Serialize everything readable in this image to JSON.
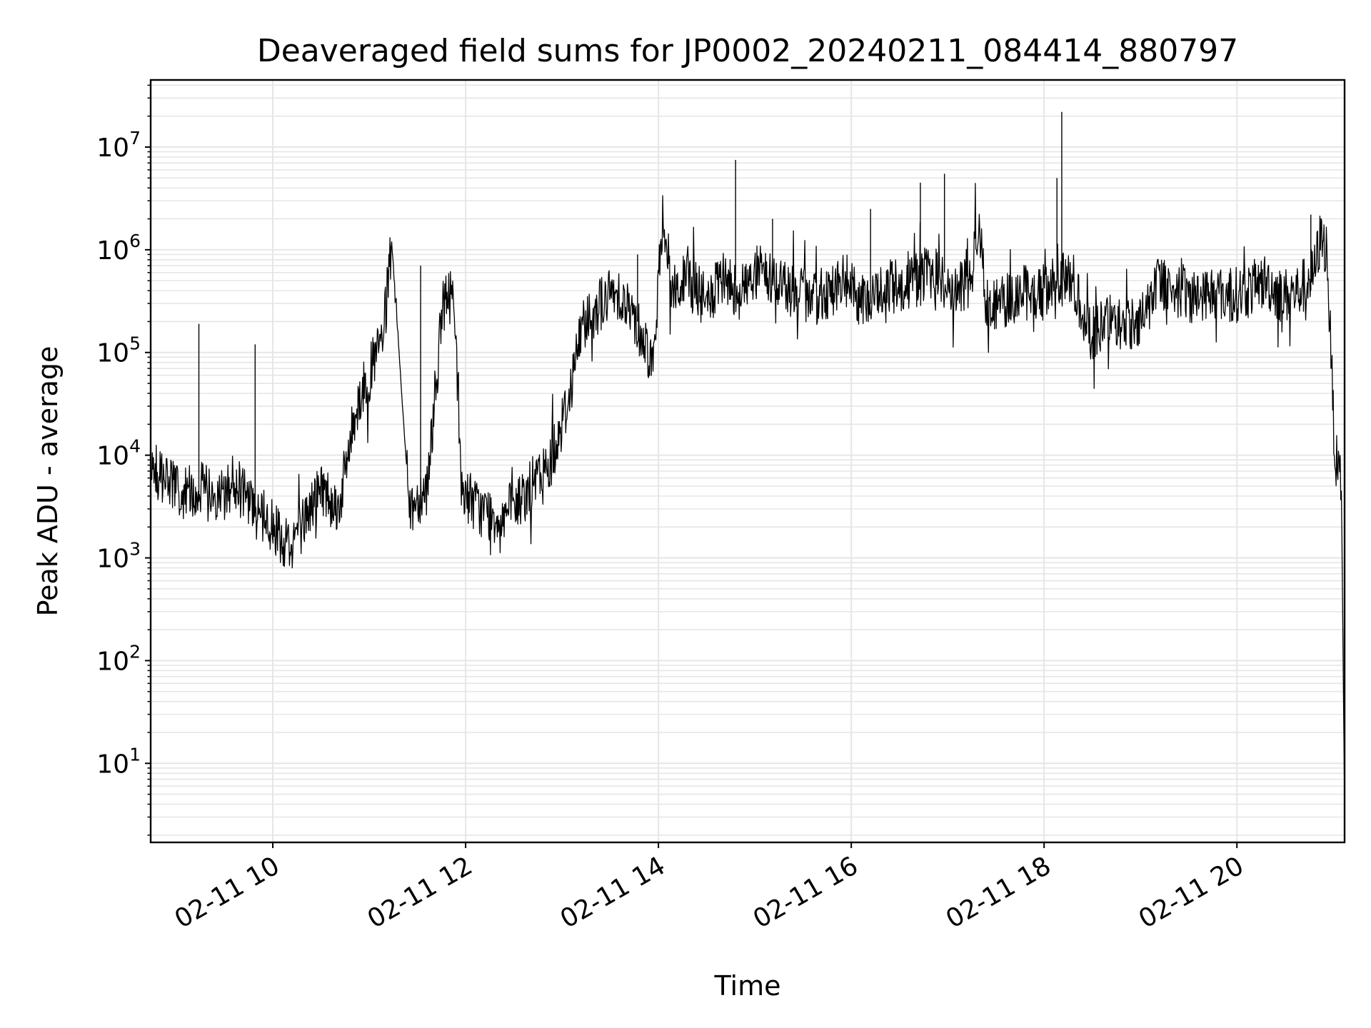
{
  "chart_data": {
    "type": "line",
    "title": "Deaveraged field sums for JP0002_20240211_084414_880797",
    "xlabel": "Time",
    "ylabel": "Peak ADU - average",
    "yscale": "log",
    "xlim": [
      "02-11 08:44",
      "02-11 21:07"
    ],
    "ylim": [
      1.7,
      45000000
    ],
    "grid": true,
    "line_color": "#000000",
    "grid_color": "#e6e6e6",
    "x_ticks": [
      {
        "t": "02-11 10:00",
        "label": "02-11 10"
      },
      {
        "t": "02-11 12:00",
        "label": "02-11 12"
      },
      {
        "t": "02-11 14:00",
        "label": "02-11 14"
      },
      {
        "t": "02-11 16:00",
        "label": "02-11 16"
      },
      {
        "t": "02-11 18:00",
        "label": "02-11 18"
      },
      {
        "t": "02-11 20:00",
        "label": "02-11 20"
      }
    ],
    "y_ticks": [
      {
        "value": 10,
        "base": "10",
        "exp": "1"
      },
      {
        "value": 100,
        "base": "10",
        "exp": "2"
      },
      {
        "value": 1000,
        "base": "10",
        "exp": "3"
      },
      {
        "value": 10000,
        "base": "10",
        "exp": "4"
      },
      {
        "value": 100000,
        "base": "10",
        "exp": "5"
      },
      {
        "value": 1000000,
        "base": "10",
        "exp": "6"
      },
      {
        "value": 10000000,
        "base": "10",
        "exp": "7"
      }
    ],
    "series": [
      {
        "x": [
          "02-11 08:44",
          "02-11 08:53",
          "02-11 09:04",
          "02-11 09:14",
          "02-11 09:25",
          "02-11 09:36",
          "02-11 09:47",
          "02-11 09:58",
          "02-11 10:09",
          "02-11 10:19",
          "02-11 10:30",
          "02-11 10:41",
          "02-11 10:52",
          "02-11 11:03",
          "02-11 11:09",
          "02-11 11:14",
          "02-11 11:25",
          "02-11 11:36",
          "02-11 11:46",
          "02-11 11:53",
          "02-11 11:57",
          "02-11 12:08",
          "02-11 12:19",
          "02-11 12:30",
          "02-11 12:41",
          "02-11 12:52",
          "02-11 13:03",
          "02-11 13:13",
          "02-11 13:24",
          "02-11 13:35",
          "02-11 13:46",
          "02-11 13:57",
          "02-11 14:03",
          "02-11 14:08",
          "02-11 14:19",
          "02-11 14:30",
          "02-11 14:40",
          "02-11 14:51",
          "02-11 15:02",
          "02-11 15:13",
          "02-11 15:24",
          "02-11 15:35",
          "02-11 15:46",
          "02-11 15:57",
          "02-11 16:07",
          "02-11 16:18",
          "02-11 16:29",
          "02-11 16:40",
          "02-11 16:51",
          "02-11 17:02",
          "02-11 17:13",
          "02-11 17:20",
          "02-11 17:24",
          "02-11 17:34",
          "02-11 17:45",
          "02-11 17:56",
          "02-11 18:07",
          "02-11 18:18",
          "02-11 18:29",
          "02-11 18:40",
          "02-11 18:51",
          "02-11 19:01",
          "02-11 19:12",
          "02-11 19:23",
          "02-11 19:34",
          "02-11 19:45",
          "02-11 19:56",
          "02-11 20:07",
          "02-11 20:18",
          "02-11 20:28",
          "02-11 20:39",
          "02-11 20:48",
          "02-11 20:52",
          "02-11 20:56",
          "02-11 21:01",
          "02-11 21:05",
          "02-11 21:07"
        ],
        "y": [
          8000,
          6000,
          4000,
          5000,
          3500,
          5500,
          3000,
          2200,
          1400,
          2200,
          5000,
          3000,
          30000,
          80000,
          150000,
          1200000,
          3000,
          5000,
          300000,
          400000,
          5000,
          3000,
          2500,
          3000,
          5000,
          8000,
          30000,
          200000,
          300000,
          400000,
          200000,
          80000,
          2500000,
          400000,
          500000,
          300000,
          500000,
          400000,
          600000,
          500000,
          400000,
          300000,
          400000,
          500000,
          300000,
          400000,
          450000,
          500000,
          600000,
          400000,
          450000,
          1800000,
          300000,
          300000,
          400000,
          350000,
          500000,
          500000,
          150000,
          200000,
          180000,
          220000,
          500000,
          400000,
          350000,
          400000,
          350000,
          400000,
          500000,
          350000,
          400000,
          600000,
          1300000,
          1000000,
          10000,
          5000,
          4
        ]
      }
    ],
    "spikes": [
      {
        "x": "02-11 09:14",
        "y": 190000
      },
      {
        "x": "02-11 09:49",
        "y": 120000
      },
      {
        "x": "02-11 11:32",
        "y": 700000
      },
      {
        "x": "02-11 13:47",
        "y": 900000
      },
      {
        "x": "02-11 14:48",
        "y": 7500000
      },
      {
        "x": "02-11 15:11",
        "y": 2000000
      },
      {
        "x": "02-11 16:12",
        "y": 2500000
      },
      {
        "x": "02-11 16:43",
        "y": 4500000
      },
      {
        "x": "02-11 16:58",
        "y": 5500000
      },
      {
        "x": "02-11 18:08",
        "y": 5000000
      },
      {
        "x": "02-11 18:11",
        "y": 22000000
      },
      {
        "x": "02-11 20:46",
        "y": 2200000
      }
    ]
  }
}
